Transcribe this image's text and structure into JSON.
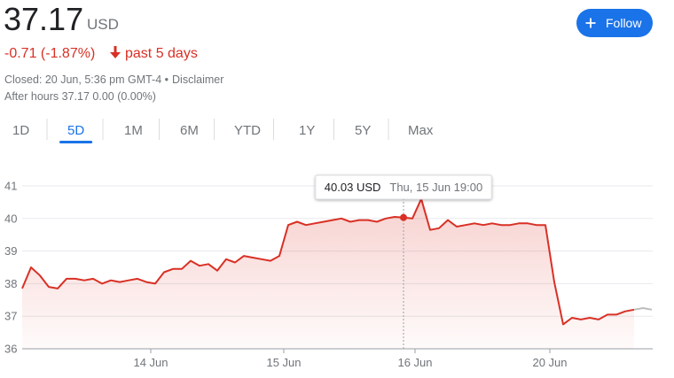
{
  "quote": {
    "price": "37.17",
    "currency": "USD",
    "change": "-0.71 (-1.87%)",
    "period": "past 5 days",
    "closed": "Closed: 20 Jun, 5:36 pm GMT-4 •",
    "disclaimer": "Disclaimer",
    "after_hours_label": "After hours",
    "after_hours_price": "37.17",
    "after_hours_change": "0.00 (0.00%)",
    "follow": "Follow"
  },
  "tabs": [
    "1D",
    "5D",
    "1M",
    "6M",
    "YTD",
    "1Y",
    "5Y",
    "Max"
  ],
  "selected_tab": "5D",
  "chart_data": {
    "type": "line",
    "ylim": [
      36,
      41
    ],
    "yticks": [
      36,
      37,
      38,
      39,
      40,
      41
    ],
    "xlim": [
      0,
      72
    ],
    "xticks": [
      {
        "value": 14.5,
        "label": "14 Jun"
      },
      {
        "value": 29.5,
        "label": "15 Jun"
      },
      {
        "value": 44.3,
        "label": "16 Jun"
      },
      {
        "value": 59.5,
        "label": "20 Jun"
      }
    ],
    "grid": true,
    "series": [
      {
        "color": "#d93025",
        "values": [
          37.85,
          38.5,
          38.25,
          37.9,
          37.85,
          38.15,
          38.15,
          38.1,
          38.15,
          38.0,
          38.1,
          38.05,
          38.1,
          38.15,
          38.05,
          38.0,
          38.35,
          38.45,
          38.45,
          38.7,
          38.55,
          38.6,
          38.4,
          38.75,
          38.65,
          38.85,
          38.8,
          38.75,
          38.7,
          38.85,
          39.8,
          39.9,
          39.8,
          39.85,
          39.9,
          39.95,
          40.0,
          39.9,
          39.95,
          39.95,
          39.9,
          40.0,
          40.05,
          40.03,
          40.0,
          40.6,
          39.65,
          39.7,
          39.95,
          39.75,
          39.8,
          39.85,
          39.8,
          39.85,
          39.8,
          39.8,
          39.85,
          39.85,
          39.8,
          39.8,
          38.05,
          36.75,
          36.95,
          36.9,
          36.95,
          36.9,
          37.05,
          37.05,
          37.15,
          37.2
        ]
      },
      {
        "color": "#bdbdbd",
        "values": [
          null,
          null,
          null,
          null,
          null,
          null,
          null,
          null,
          null,
          null,
          null,
          null,
          null,
          null,
          null,
          null,
          null,
          null,
          null,
          null,
          null,
          null,
          null,
          null,
          null,
          null,
          null,
          null,
          null,
          null,
          null,
          null,
          null,
          null,
          null,
          null,
          null,
          null,
          null,
          null,
          null,
          null,
          null,
          null,
          null,
          null,
          null,
          null,
          null,
          null,
          null,
          null,
          null,
          null,
          null,
          null,
          null,
          null,
          null,
          null,
          null,
          null,
          null,
          null,
          null,
          null,
          null,
          null,
          null,
          37.2,
          37.25,
          37.2
        ]
      }
    ],
    "tooltip": {
      "value_label": "40.03 USD",
      "time": "Thu, 15 Jun 19:00"
    }
  }
}
